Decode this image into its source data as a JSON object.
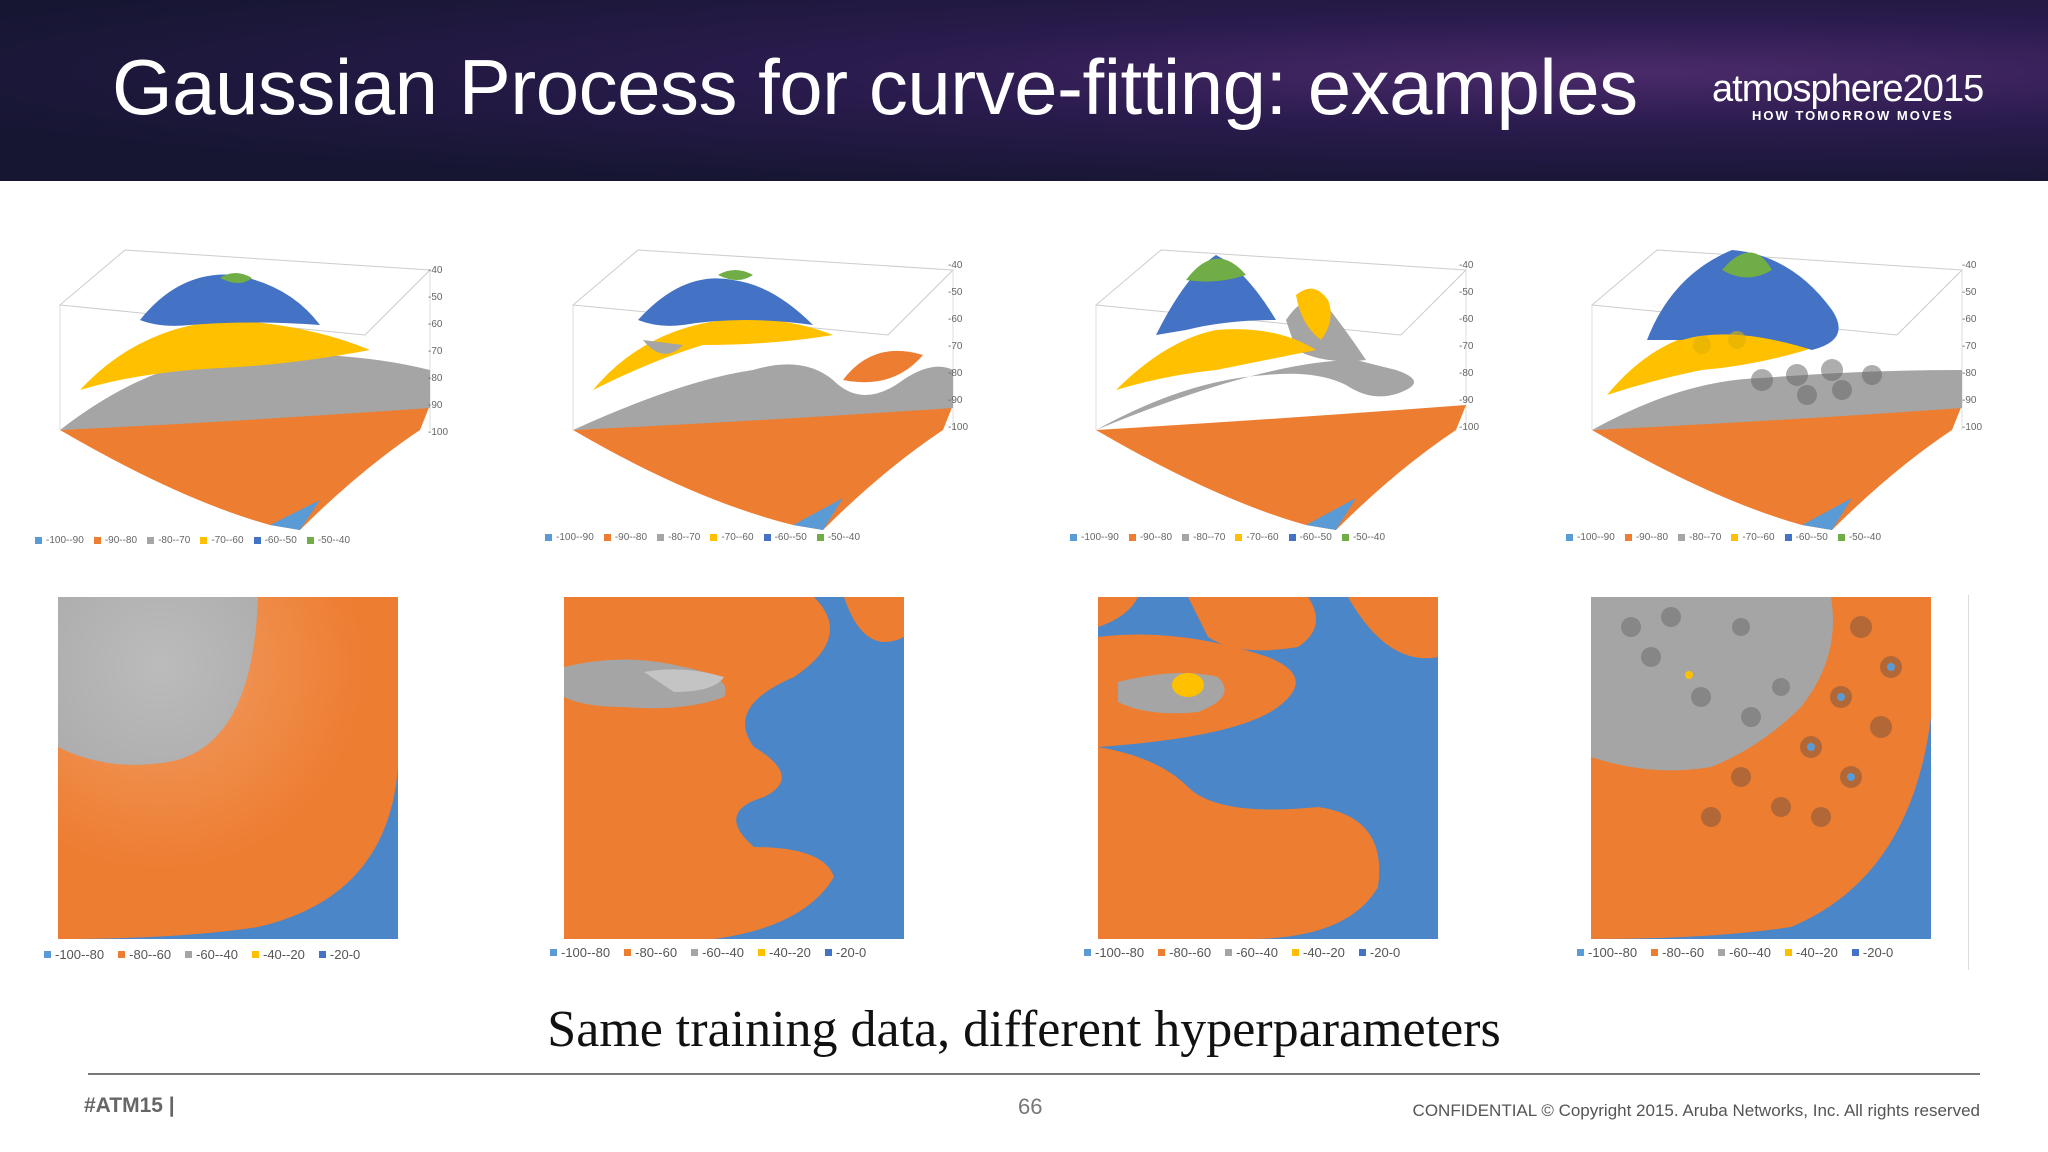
{
  "slide": {
    "title": "Gaussian Process for curve-fitting: examples",
    "caption": "Same training data, different hyperparameters",
    "hashtag": "#ATM15 |",
    "page_number": "66",
    "copyright": "CONFIDENTIAL © Copyright 2015. Aruba Networks, Inc. All rights reserved"
  },
  "logo": {
    "wordmark": "atmosphere",
    "year": "2015",
    "tagline": "HOW TOMORROW MOVES"
  },
  "colors": {
    "header_bg": "#1c1a3c",
    "blue": "#5b9bd5",
    "orange": "#ed7d31",
    "gray": "#a5a5a5",
    "yellow": "#ffc000",
    "dark_blue": "#4472c4",
    "green": "#70ad47"
  },
  "surface_legend": [
    {
      "label": "-100--90",
      "color": "#5b9bd5"
    },
    {
      "label": "-90--80",
      "color": "#ed7d31"
    },
    {
      "label": "-80--70",
      "color": "#a5a5a5"
    },
    {
      "label": "-70--60",
      "color": "#ffc000"
    },
    {
      "label": "-60--50",
      "color": "#4472c4"
    },
    {
      "label": "-50--40",
      "color": "#70ad47"
    }
  ],
  "surface_axis": [
    "-40",
    "-50",
    "-60",
    "-70",
    "-80",
    "-90",
    "-100"
  ],
  "heatmap_legend": [
    {
      "label": "-100--80",
      "color": "#5b9bd5"
    },
    {
      "label": "-80--60",
      "color": "#ed7d31"
    },
    {
      "label": "-60--40",
      "color": "#a5a5a5"
    },
    {
      "label": "-40--20",
      "color": "#ffc000"
    },
    {
      "label": "-20-0",
      "color": "#4472c4"
    }
  ]
}
